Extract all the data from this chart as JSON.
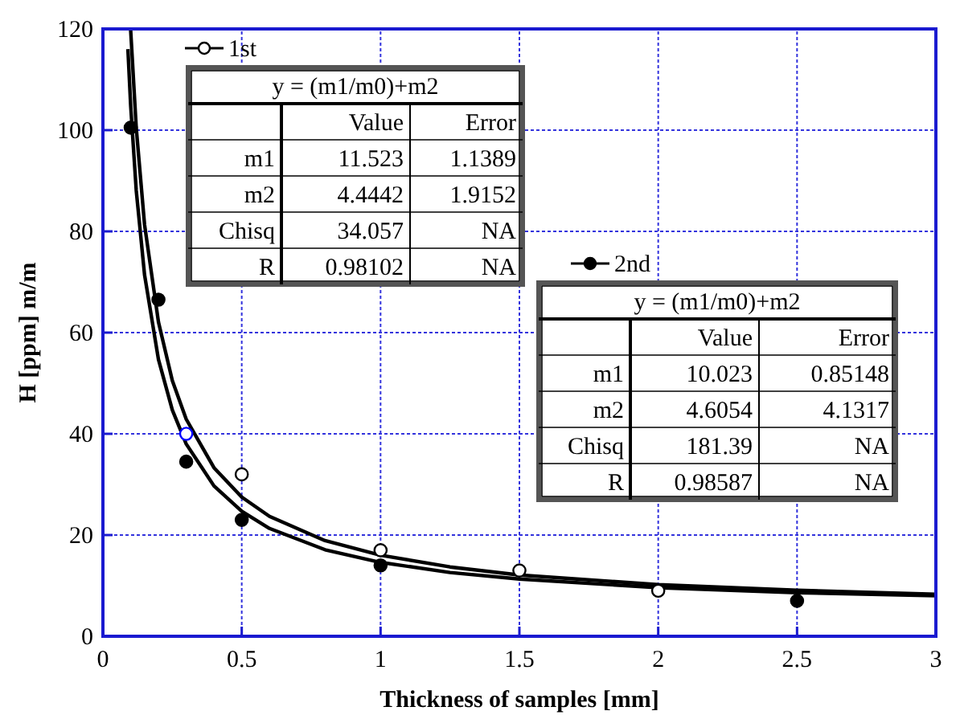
{
  "chart_data": {
    "type": "scatter",
    "xlabel": "Thickness of samples [mm]",
    "ylabel": "H [ppm] m/m",
    "xlim": [
      0,
      3
    ],
    "ylim": [
      0,
      120
    ],
    "xticks": [
      0,
      0.5,
      1,
      1.5,
      2,
      2.5,
      3
    ],
    "yticks": [
      0,
      20,
      40,
      60,
      80,
      100,
      120
    ],
    "grid": true,
    "legend": "top",
    "series": [
      {
        "name": "1st",
        "marker": "circle",
        "color": "#000000",
        "colors": [
          "#0000ff",
          "#000000",
          "#000000",
          "#000000",
          "#000000"
        ],
        "x": [
          0.3,
          0.5,
          1,
          1.5,
          2
        ],
        "values": [
          40,
          32,
          17,
          13,
          9
        ]
      },
      {
        "name": "2nd",
        "marker": "circle",
        "color": "#000000",
        "x": [
          0.1,
          0.2,
          0.3,
          0.5,
          1,
          2.5
        ],
        "values": [
          100.5,
          66.5,
          34.5,
          23,
          14,
          7
        ]
      },
      {
        "type": "line",
        "color": "#000000",
        "x": [
          0.1,
          0.12,
          0.15,
          0.2,
          0.25,
          0.3,
          0.4,
          0.5,
          0.6,
          0.8,
          1,
          1.25,
          1.5,
          2,
          2.5,
          3
        ],
        "values": [
          119.7,
          100.5,
          81.3,
          62.1,
          50.5,
          42.9,
          33.3,
          27.5,
          23.7,
          18.9,
          16,
          13.7,
          12.1,
          10.2,
          9.1,
          8.3
        ]
      },
      {
        "type": "line",
        "color": "#000000",
        "x": [
          0.09,
          0.1,
          0.12,
          0.15,
          0.2,
          0.25,
          0.3,
          0.4,
          0.5,
          0.6,
          0.8,
          1,
          1.25,
          1.5,
          2,
          2.5,
          3
        ],
        "values": [
          116,
          104.8,
          88.1,
          71.4,
          54.7,
          44.7,
          38,
          29.7,
          24.7,
          21.3,
          17.1,
          14.6,
          12.6,
          11.3,
          9.6,
          8.6,
          8
        ]
      }
    ],
    "annotations": [
      "y = (m1/m0)+m2",
      "Value",
      "Error",
      "m1",
      "11.523",
      "1.1389",
      "m2",
      "4.4442",
      "1.9152",
      "Chisq",
      "34.057",
      "NA",
      "R",
      "0.98102",
      "NA",
      "y = (m1/m0)+m2",
      "Value",
      "Error",
      "m1",
      "10.023",
      "0.85148",
      "m2",
      "4.6054",
      "4.1317",
      "Chisq",
      "181.39",
      "NA",
      "R",
      "0.98587",
      "NA"
    ]
  }
}
